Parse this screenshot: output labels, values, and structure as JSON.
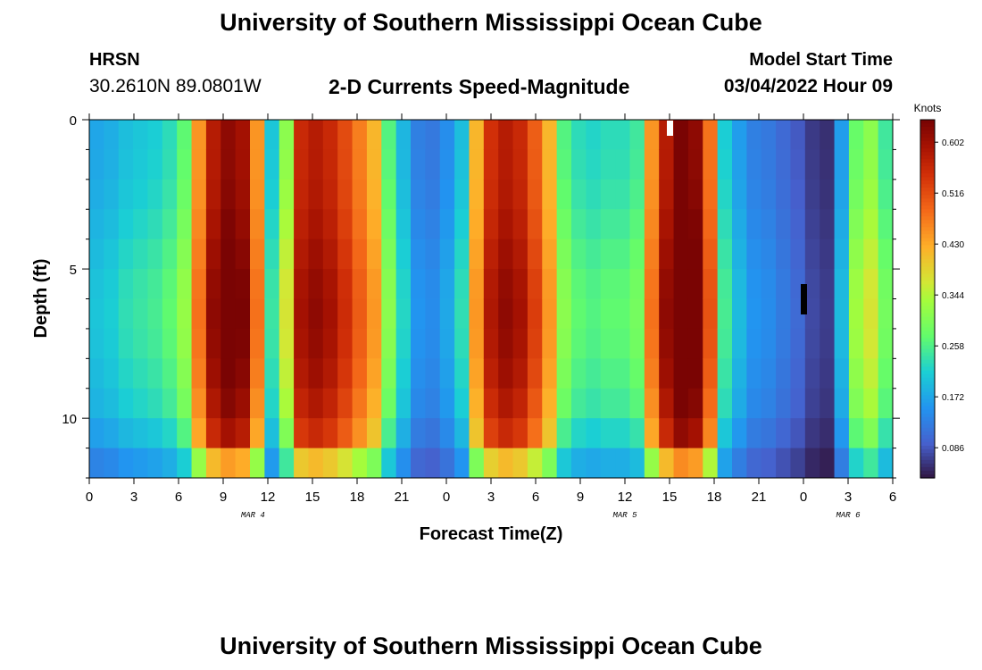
{
  "header": {
    "title": "University of Southern Mississippi Ocean Cube",
    "station": "HRSN",
    "coordinates": "30.2610N  89.0801W",
    "plot_title": "2-D Currents Speed-Magnitude",
    "model_start_label": "Model Start Time",
    "model_start_value": "03/04/2022 Hour 09"
  },
  "footer": {
    "title": "University of Southern Mississippi Ocean Cube"
  },
  "chart_data": {
    "type": "heatmap",
    "title": "2-D Currents Speed-Magnitude",
    "xlabel": "Forecast Time(Z)",
    "ylabel": "Depth (ft)",
    "x_range_hours": [
      0,
      54
    ],
    "y_range_ft": [
      0,
      12
    ],
    "x_tick_labels": [
      "0",
      "3",
      "6",
      "9",
      "12",
      "15",
      "18",
      "21",
      "0",
      "3",
      "6",
      "9",
      "12",
      "15",
      "18",
      "21",
      "0",
      "3",
      "6"
    ],
    "date_labels": [
      {
        "label": "MAR 4",
        "hour": 11
      },
      {
        "label": "MAR 5",
        "hour": 36
      },
      {
        "label": "MAR 6",
        "hour": 51
      }
    ],
    "y_tick_labels": [
      "0",
      "5",
      "10"
    ],
    "y_tick_values": [
      0,
      5,
      10
    ],
    "colorbar": {
      "label": "Knots",
      "ticks": [
        "0.602",
        "0.516",
        "0.430",
        "0.344",
        "0.258",
        "0.172",
        "0.086"
      ],
      "tick_values": [
        0.602,
        0.516,
        0.43,
        0.344,
        0.258,
        0.172,
        0.086
      ],
      "range": [
        0.035,
        0.64
      ]
    },
    "depth_levels_ft": [
      0.5,
      1.5,
      2.5,
      3.5,
      4.5,
      5.5,
      6.5,
      7.5,
      8.5,
      9.5,
      10.5,
      11.5
    ],
    "surface_speed_knots_by_hour": [
      0.21,
      0.22,
      0.24,
      0.25,
      0.26,
      0.28,
      0.33,
      0.45,
      0.58,
      0.62,
      0.6,
      0.45,
      0.25,
      0.38,
      0.56,
      0.58,
      0.56,
      0.52,
      0.47,
      0.42,
      0.32,
      0.23,
      0.16,
      0.15,
      0.18,
      0.24,
      0.42,
      0.55,
      0.58,
      0.56,
      0.5,
      0.42,
      0.32,
      0.28,
      0.27,
      0.28,
      0.28,
      0.3,
      0.45,
      0.58,
      0.64,
      0.62,
      0.48,
      0.26,
      0.2,
      0.16,
      0.15,
      0.13,
      0.11,
      0.08,
      0.07,
      0.2,
      0.34,
      0.38,
      0.3
    ],
    "depth_profile_note": "strong cores peak near 6-7 ft; speeds weaken toward bottom (12 ft)"
  }
}
